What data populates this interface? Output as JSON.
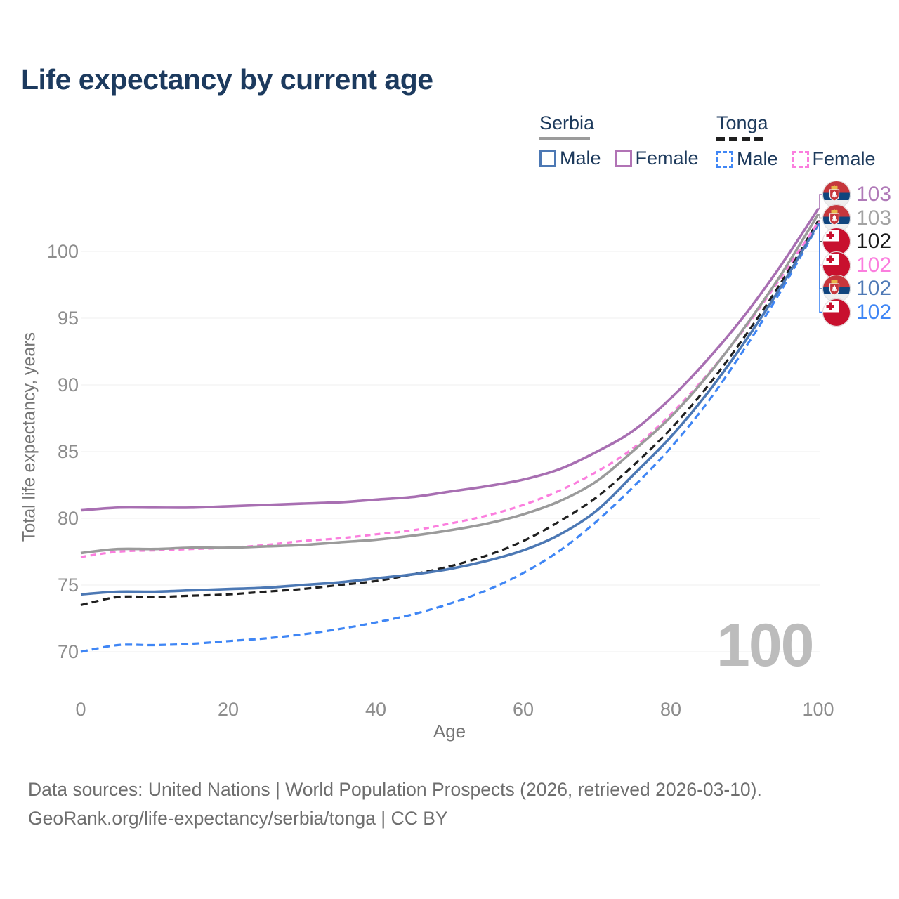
{
  "title": "Life expectancy by current age",
  "legend": {
    "groups": [
      {
        "label": "Serbia",
        "line_style": "solid",
        "underline_color": "#9b9b9b",
        "items": [
          {
            "label": "Male",
            "color": "#4c78b4",
            "style": "solid"
          },
          {
            "label": "Female",
            "color": "#b173b5",
            "style": "solid"
          }
        ]
      },
      {
        "label": "Tonga",
        "line_style": "dashed",
        "underline_color": "#1f1f1f",
        "items": [
          {
            "label": "Male",
            "color": "#3f86f5",
            "style": "dashed"
          },
          {
            "label": "Female",
            "color": "#fb7ede",
            "style": "dashed"
          }
        ]
      }
    ]
  },
  "chart_data": {
    "type": "line",
    "title": "Life expectancy by current age",
    "xlabel": "Age",
    "ylabel": "Total life expectancy, years",
    "x_ticks": [
      0,
      20,
      40,
      60,
      80,
      100
    ],
    "y_ticks": [
      70,
      75,
      80,
      85,
      90,
      95,
      100
    ],
    "xlim": [
      0,
      100
    ],
    "ylim": [
      69,
      103.5
    ],
    "grid": "horizontal",
    "legend_position": "top-right",
    "x": [
      0,
      5,
      10,
      15,
      20,
      25,
      30,
      35,
      40,
      45,
      50,
      55,
      60,
      65,
      70,
      75,
      80,
      85,
      90,
      95,
      100
    ],
    "series": [
      {
        "id": "tonga-male",
        "name": "Tonga Male",
        "country": "Tonga",
        "sex": "Male",
        "style": "dashed",
        "color": "#3f86f5",
        "values": [
          70.0,
          70.5,
          70.5,
          70.6,
          70.8,
          71.0,
          71.3,
          71.7,
          72.2,
          72.8,
          73.6,
          74.6,
          75.9,
          77.6,
          79.8,
          82.4,
          85.3,
          88.7,
          92.7,
          97.1,
          102.0
        ]
      },
      {
        "id": "tonga-total",
        "name": "Tonga",
        "country": "Tonga",
        "sex": "Both",
        "style": "dashed",
        "color": "#1f1f1f",
        "values": [
          73.5,
          74.1,
          74.1,
          74.2,
          74.3,
          74.5,
          74.7,
          75.0,
          75.3,
          75.8,
          76.4,
          77.2,
          78.3,
          79.8,
          81.6,
          84.0,
          86.7,
          89.9,
          93.6,
          97.7,
          102.3
        ]
      },
      {
        "id": "serbia-male",
        "name": "Serbia Male",
        "country": "Serbia",
        "sex": "Male",
        "style": "solid",
        "color": "#4c78b4",
        "values": [
          74.3,
          74.5,
          74.5,
          74.6,
          74.7,
          74.8,
          75.0,
          75.2,
          75.5,
          75.8,
          76.2,
          76.8,
          77.6,
          78.8,
          80.6,
          83.3,
          86.1,
          89.4,
          93.2,
          97.4,
          102.1
        ]
      },
      {
        "id": "tonga-female",
        "name": "Tonga Female",
        "country": "Tonga",
        "sex": "Female",
        "style": "dashed",
        "color": "#fb7ede",
        "values": [
          77.1,
          77.5,
          77.6,
          77.7,
          77.8,
          78.0,
          78.3,
          78.5,
          78.8,
          79.1,
          79.6,
          80.2,
          81.0,
          82.1,
          83.5,
          85.3,
          87.8,
          90.8,
          94.2,
          98.1,
          102.2
        ]
      },
      {
        "id": "serbia-total",
        "name": "Serbia",
        "country": "Serbia",
        "sex": "Both",
        "style": "solid",
        "color": "#9b9b9b",
        "values": [
          77.4,
          77.7,
          77.7,
          77.8,
          77.8,
          77.9,
          78.0,
          78.2,
          78.4,
          78.7,
          79.1,
          79.6,
          80.3,
          81.3,
          82.8,
          85.1,
          87.6,
          90.7,
          94.3,
          98.3,
          102.8
        ]
      },
      {
        "id": "serbia-female",
        "name": "Serbia Female",
        "country": "Serbia",
        "sex": "Female",
        "style": "solid",
        "color": "#a86fb2",
        "values": [
          80.6,
          80.8,
          80.8,
          80.8,
          80.9,
          81.0,
          81.1,
          81.2,
          81.4,
          81.6,
          82.0,
          82.4,
          82.9,
          83.7,
          85.0,
          86.6,
          89.0,
          91.9,
          95.2,
          99.0,
          103.2
        ]
      }
    ],
    "end_labels": [
      {
        "series": "serbia-female",
        "flag": "serbia",
        "value": "103",
        "color": "#b07ab8"
      },
      {
        "series": "serbia-total",
        "flag": "serbia",
        "value": "103",
        "color": "#a3a3a3"
      },
      {
        "series": "tonga-total",
        "flag": "tonga",
        "value": "102",
        "color": "#1a1a1a"
      },
      {
        "series": "tonga-female",
        "flag": "tonga",
        "value": "102",
        "color": "#fb7ede"
      },
      {
        "series": "serbia-male",
        "flag": "serbia",
        "value": "102",
        "color": "#4f79b5"
      },
      {
        "series": "tonga-male",
        "flag": "tonga",
        "value": "102",
        "color": "#3f86f5"
      }
    ]
  },
  "watermark": "100",
  "footer": {
    "line1": "Data sources: United Nations | World Population Prospects (2026, retrieved 2026-03-10).",
    "line2": "GeoRank.org/life-expectancy/serbia/tonga | CC BY"
  }
}
